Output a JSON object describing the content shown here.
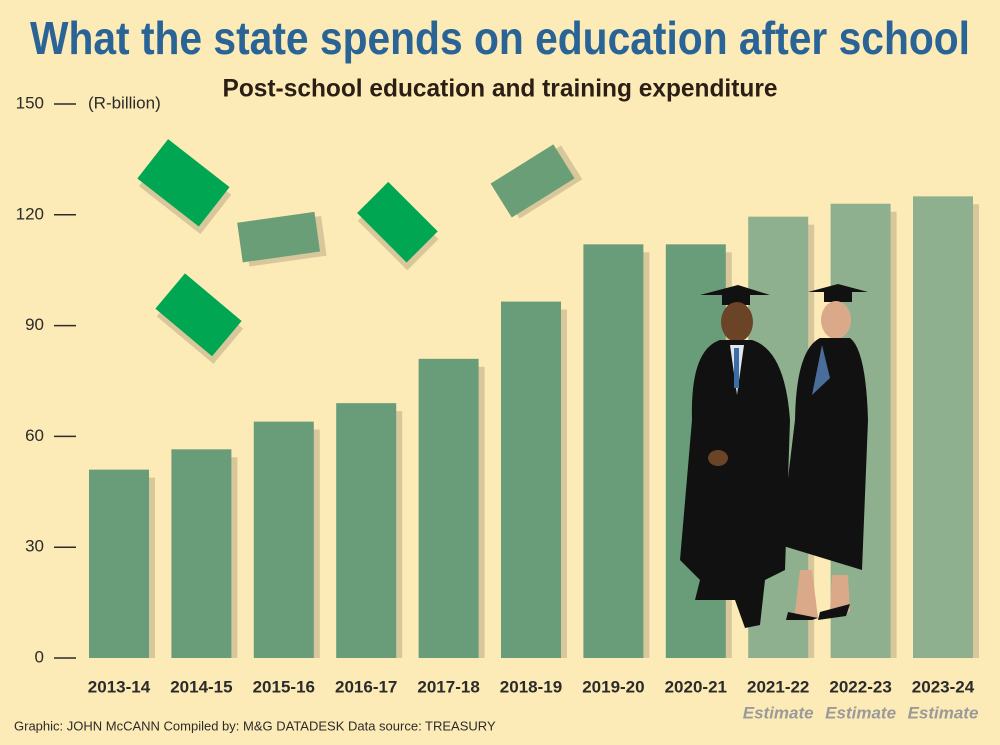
{
  "chart_data": {
    "type": "bar",
    "title": "What the state spends on education after school",
    "subtitle": "Post-school education and training expenditure",
    "y_label": "(R-billion)",
    "categories": [
      "2013-14",
      "2014-15",
      "2015-16",
      "2016-17",
      "2017-18",
      "2018-19",
      "2019-20",
      "2020-21",
      "2021-22",
      "2022-23",
      "2023-24"
    ],
    "category_notes": [
      null,
      null,
      null,
      null,
      null,
      null,
      null,
      null,
      "Estimate",
      "Estimate",
      "Estimate"
    ],
    "values": [
      51,
      56.5,
      64,
      69,
      81,
      96.5,
      112,
      112,
      119.5,
      123,
      125
    ],
    "colors": [
      "#699c78",
      "#699c78",
      "#699c78",
      "#699c78",
      "#699c78",
      "#699c78",
      "#699c78",
      "#699c78",
      "#8fb08e",
      "#8fb08e",
      "#8fb08e"
    ],
    "ylim": [
      0,
      150
    ],
    "yticks": [
      0,
      30,
      60,
      90,
      120,
      150
    ],
    "source": "Graphic: JOHN McCANN  Compiled by: M&G DATADESK  Data source: TREASURY"
  }
}
